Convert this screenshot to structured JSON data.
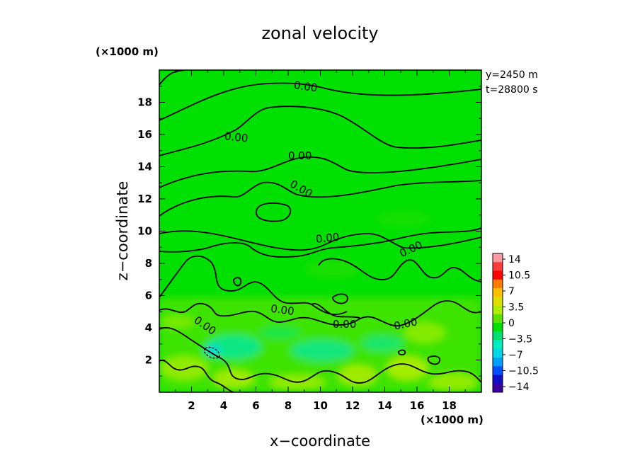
{
  "chart_data": {
    "type": "heatmap",
    "title": "zonal velocity",
    "xlabel": "x−coordinate",
    "ylabel": "z−coordinate",
    "x_unit": "(×1000 m)",
    "y_unit": "(×1000 m)",
    "info": [
      "y=2450 m",
      "t=28800 s"
    ],
    "xlim": [
      0,
      20
    ],
    "ylim": [
      0,
      20
    ],
    "xticks": [
      "2",
      "4",
      "6",
      "8",
      "10",
      "12",
      "14",
      "16",
      "18"
    ],
    "yticks": [
      "2",
      "4",
      "6",
      "8",
      "10",
      "12",
      "14",
      "16",
      "18"
    ],
    "contour_label": "0.00",
    "colorbar_labels": [
      "14",
      "10.5",
      "7",
      "3.5",
      "0",
      "−3.5",
      "−7",
      "−10.5",
      "−14"
    ],
    "colorbar_colors": [
      "#ff9aa0",
      "#ff3a3a",
      "#ff0000",
      "#ff7a00",
      "#ffc000",
      "#e0e000",
      "#b0ee00",
      "#60e000",
      "#00e000",
      "#00e070",
      "#00eec0",
      "#00d8e8",
      "#00a0ff",
      "#0050ff",
      "#1010c8",
      "#3a00a0"
    ],
    "grid": false,
    "legend": "colorbar-right"
  },
  "colors": {
    "field": "#00e000",
    "contour": "#000000",
    "frame": "#000000"
  }
}
